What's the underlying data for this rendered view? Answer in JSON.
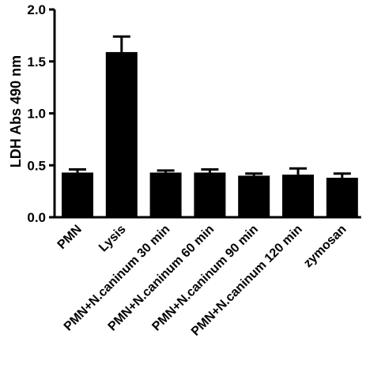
{
  "chart_data": {
    "type": "bar",
    "title": "",
    "xlabel": "",
    "ylabel": "LDH Abs 490 nm",
    "ylim": [
      0,
      2.0
    ],
    "yticks": [
      0.0,
      0.5,
      1.0,
      1.5,
      2.0
    ],
    "ytick_labels": [
      "0.0",
      "0.5",
      "1.0",
      "1.5",
      "2.0"
    ],
    "categories": [
      "PMN",
      "Lysis",
      "PMN+N.caninum 30 min",
      "PMN+N.caninum 60 min",
      "PMN+N.caninum 90 min",
      "PMN+N.caninum 120 min",
      "zymosan"
    ],
    "values": [
      0.43,
      1.59,
      0.43,
      0.43,
      0.4,
      0.41,
      0.38
    ],
    "errors": [
      0.03,
      0.15,
      0.02,
      0.03,
      0.02,
      0.06,
      0.04
    ],
    "bar_color": "#000000",
    "grid": false,
    "legend": "none"
  }
}
